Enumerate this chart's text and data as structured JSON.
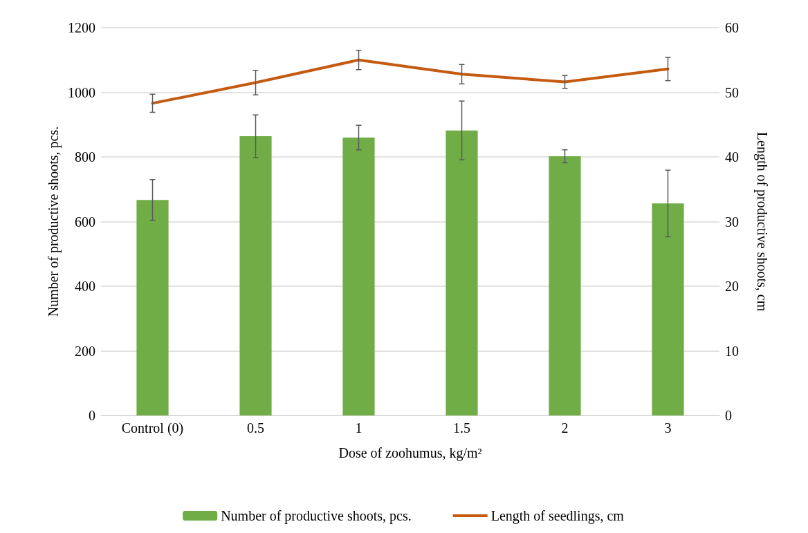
{
  "chart_data": {
    "type": "bar",
    "categories": [
      "Control (0)",
      "0.5",
      "1",
      "1.5",
      "2",
      "3"
    ],
    "xlabel": "Dose of zoohumus, kg/m²",
    "ylabel": "Number of productive shoots, pcs.",
    "y2label": "Length of productive shoots, cm",
    "series": [
      {
        "name": "Number of productive shoots, pcs.",
        "type": "bar",
        "color": "#70ad47",
        "values": [
          667,
          864,
          860,
          882,
          802,
          656
        ],
        "errors": [
          63,
          66,
          38,
          91,
          20,
          103
        ]
      },
      {
        "name": "Length of seedlings, cm",
        "type": "line",
        "axis": "y2",
        "color": "#c55a11",
        "values": [
          48.3,
          51.5,
          55.0,
          52.8,
          51.6,
          53.6
        ],
        "errors": [
          1.4,
          1.9,
          1.5,
          1.5,
          1.0,
          1.8
        ]
      }
    ],
    "ylim": [
      0,
      1200
    ],
    "yticks": [
      0,
      200,
      400,
      600,
      800,
      1000,
      1200
    ],
    "y2lim": [
      0,
      60
    ],
    "y2ticks": [
      0,
      10,
      20,
      30,
      40,
      50,
      60
    ],
    "grid": "y",
    "legend": "bottom",
    "marker": "none",
    "line_style": "solid"
  }
}
